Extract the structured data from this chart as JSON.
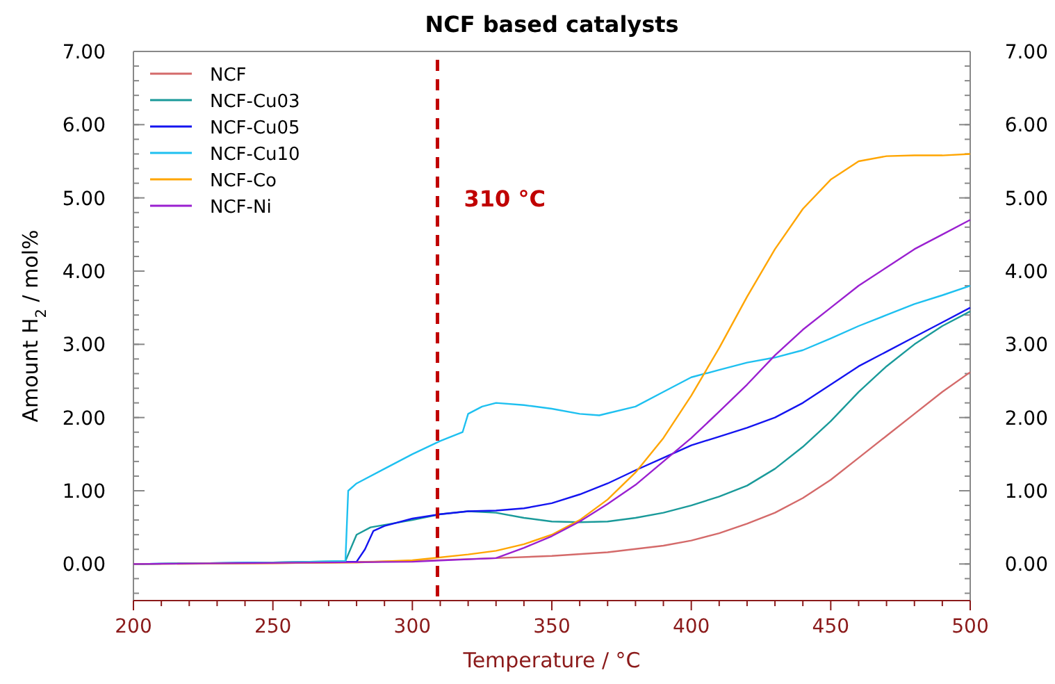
{
  "chart_data": {
    "type": "line",
    "title": "NCF based catalysts",
    "xlabel": "Temperature / °C",
    "ylabel": "Amount H$_{2}$ / mol%",
    "xlim": [
      200,
      500
    ],
    "xticks": [
      200,
      {
        "value": 210,
        "label": null
      },
      {
        "value": 220,
        "label": null
      },
      {
        "value": 230,
        "label": null
      },
      {
        "value": 240,
        "label": null
      },
      250,
      {
        "value": 260,
        "label": null
      },
      {
        "value": 270,
        "label": null
      },
      {
        "value": 280,
        "label": null
      },
      {
        "value": 290,
        "label": null
      },
      300,
      {
        "value": 310,
        "label": null
      },
      {
        "value": 320,
        "label": null
      },
      {
        "value": 330,
        "label": null
      },
      {
        "value": 340,
        "label": null
      },
      350,
      {
        "value": 360,
        "label": null
      },
      {
        "value": 370,
        "label": null
      },
      {
        "value": 380,
        "label": null
      },
      {
        "value": 390,
        "label": null
      },
      400,
      {
        "value": 410,
        "label": null
      },
      {
        "value": 420,
        "label": null
      },
      {
        "value": 430,
        "label": null
      },
      {
        "value": 440,
        "label": null
      },
      450,
      {
        "value": 460,
        "label": null
      },
      {
        "value": 470,
        "label": null
      },
      {
        "value": 480,
        "label": null
      },
      {
        "value": 490,
        "label": null
      },
      500
    ],
    "ylim": [
      -0.5,
      7
    ],
    "yticks": [
      {
        "value": 0,
        "label": "0.00"
      },
      {
        "value": 1,
        "label": "1.00"
      },
      {
        "value": 2,
        "label": "2.00"
      },
      {
        "value": 3,
        "label": "3.00"
      },
      {
        "value": 4,
        "label": "4.00"
      },
      {
        "value": 5,
        "label": "5.00"
      },
      {
        "value": 6,
        "label": "6.00"
      },
      {
        "value": 7,
        "label": "7.00"
      }
    ],
    "y2lim": [
      -0.5,
      7
    ],
    "y2ticks": [
      {
        "value": 0,
        "label": "0.00"
      },
      {
        "value": 1,
        "label": "1.00"
      },
      {
        "value": 2,
        "label": "2.00"
      },
      {
        "value": 3,
        "label": "3.00"
      },
      {
        "value": 4,
        "label": "4.00"
      },
      {
        "value": 5,
        "label": "5.00"
      },
      {
        "value": 6,
        "label": "6.00"
      },
      {
        "value": 7,
        "label": "7.00"
      }
    ],
    "grid": false,
    "legend": "top left",
    "line_style": "solid",
    "ref_lines": [
      {
        "axis": "x",
        "value": 309,
        "label": "310 °C",
        "color": "#c00000",
        "line_style": "dashed"
      }
    ],
    "series": [
      {
        "name": "NCF",
        "color": "#d46a6a",
        "x": [
          200,
          250,
          300,
          330,
          350,
          370,
          390,
          400,
          410,
          420,
          430,
          440,
          450,
          460,
          470,
          480,
          490,
          500
        ],
        "values": [
          0,
          0.01,
          0.04,
          0.08,
          0.11,
          0.16,
          0.25,
          0.32,
          0.42,
          0.55,
          0.7,
          0.9,
          1.15,
          1.45,
          1.75,
          2.05,
          2.35,
          2.62
        ]
      },
      {
        "name": "NCF-Cu03",
        "color": "#1a9a9a",
        "x": [
          200,
          250,
          276,
          280,
          285,
          300,
          310,
          320,
          330,
          340,
          350,
          360,
          370,
          380,
          390,
          400,
          410,
          420,
          430,
          440,
          450,
          460,
          470,
          480,
          490,
          500
        ],
        "values": [
          0,
          0.02,
          0.04,
          0.4,
          0.5,
          0.6,
          0.68,
          0.72,
          0.7,
          0.63,
          0.58,
          0.57,
          0.58,
          0.63,
          0.7,
          0.8,
          0.92,
          1.07,
          1.3,
          1.6,
          1.95,
          2.35,
          2.7,
          3,
          3.25,
          3.45
        ]
      },
      {
        "name": "NCF-Cu05",
        "color": "#1414f0",
        "x": [
          200,
          250,
          280,
          283,
          286,
          290,
          300,
          310,
          320,
          330,
          340,
          350,
          360,
          370,
          380,
          390,
          400,
          410,
          420,
          430,
          440,
          450,
          460,
          470,
          480,
          490,
          500
        ],
        "values": [
          0,
          0.02,
          0.03,
          0.2,
          0.45,
          0.52,
          0.62,
          0.68,
          0.72,
          0.73,
          0.76,
          0.83,
          0.95,
          1.1,
          1.28,
          1.45,
          1.62,
          1.74,
          1.86,
          2,
          2.2,
          2.45,
          2.7,
          2.9,
          3.1,
          3.3,
          3.5
        ]
      },
      {
        "name": "NCF-Cu10",
        "color": "#1ec0f0",
        "x": [
          200,
          250,
          276,
          277,
          280,
          290,
          300,
          310,
          318,
          320,
          325,
          330,
          340,
          350,
          360,
          367,
          380,
          390,
          400,
          410,
          420,
          430,
          440,
          450,
          460,
          470,
          480,
          490,
          500
        ],
        "values": [
          0,
          0.02,
          0.04,
          1,
          1.1,
          1.3,
          1.5,
          1.68,
          1.8,
          2.05,
          2.15,
          2.2,
          2.17,
          2.12,
          2.05,
          2.03,
          2.15,
          2.35,
          2.55,
          2.65,
          2.75,
          2.82,
          2.92,
          3.08,
          3.25,
          3.4,
          3.55,
          3.67,
          3.8
        ]
      },
      {
        "name": "NCF-Co",
        "color": "#ffa500",
        "x": [
          200,
          280,
          300,
          320,
          330,
          340,
          350,
          360,
          370,
          380,
          390,
          400,
          410,
          420,
          430,
          440,
          450,
          460,
          470,
          480,
          490,
          500
        ],
        "values": [
          0,
          0.02,
          0.05,
          0.13,
          0.18,
          0.27,
          0.4,
          0.6,
          0.88,
          1.25,
          1.72,
          2.3,
          2.95,
          3.65,
          4.3,
          4.85,
          5.25,
          5.5,
          5.57,
          5.58,
          5.58,
          5.6
        ]
      },
      {
        "name": "NCF-Ni",
        "color": "#9a20d0",
        "x": [
          200,
          300,
          330,
          340,
          350,
          360,
          370,
          380,
          390,
          400,
          410,
          420,
          430,
          440,
          450,
          460,
          470,
          480,
          490,
          500
        ],
        "values": [
          0,
          0.03,
          0.08,
          0.22,
          0.38,
          0.58,
          0.82,
          1.08,
          1.4,
          1.72,
          2.08,
          2.45,
          2.85,
          3.2,
          3.5,
          3.8,
          4.05,
          4.3,
          4.5,
          4.7
        ]
      }
    ]
  }
}
